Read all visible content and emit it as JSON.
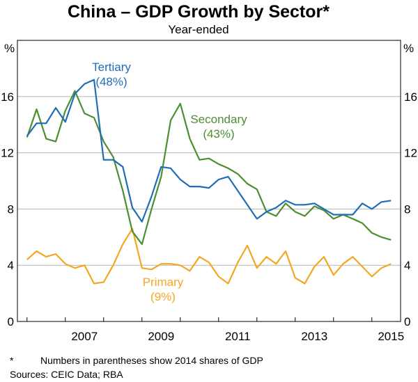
{
  "chart_data": {
    "type": "line",
    "title": "China – GDP Growth by Sector*",
    "subtitle": "Year-ended",
    "ylabel": "%",
    "ylim": [
      0,
      20
    ],
    "yticks": [
      0,
      4,
      8,
      12,
      16
    ],
    "xlim": [
      2005.75,
      2015.75
    ],
    "xticks": [
      2007,
      2009,
      2011,
      2013,
      2015
    ],
    "x_start": 2006.0,
    "x_step": 0.25,
    "series": [
      {
        "name": "Tertiary",
        "share": "(48%)",
        "color": "#1f6db5",
        "values": [
          13.2,
          14.1,
          14.1,
          15.2,
          14.2,
          16.2,
          16.9,
          17.2,
          11.5,
          11.5,
          11.0,
          8.1,
          7.1,
          8.9,
          11.0,
          10.9,
          10.1,
          9.6,
          9.6,
          9.5,
          10.1,
          10.3,
          9.3,
          8.3,
          7.3,
          7.8,
          8.1,
          8.6,
          8.3,
          8.3,
          8.4,
          8.0,
          7.6,
          7.6,
          7.6,
          8.4,
          8.0,
          8.5,
          8.6
        ]
      },
      {
        "name": "Secondary",
        "share": "(43%)",
        "color": "#4c8f30",
        "values": [
          13.1,
          15.1,
          13.0,
          12.8,
          15.0,
          16.4,
          14.8,
          14.5,
          12.8,
          11.7,
          9.3,
          6.4,
          5.5,
          8.0,
          10.3,
          14.3,
          15.5,
          13.0,
          11.5,
          11.6,
          11.2,
          10.9,
          10.5,
          9.8,
          9.4,
          7.8,
          7.5,
          8.4,
          7.8,
          7.5,
          8.2,
          7.9,
          7.3,
          7.6,
          7.3,
          7.0,
          6.3,
          6.0,
          5.8
        ]
      },
      {
        "name": "Primary",
        "share": "(9%)",
        "color": "#f5a623",
        "values": [
          4.4,
          5.0,
          4.6,
          4.8,
          4.1,
          3.8,
          4.0,
          2.7,
          2.8,
          4.0,
          5.5,
          6.6,
          3.8,
          3.7,
          4.1,
          4.1,
          4.0,
          3.6,
          4.6,
          4.2,
          3.2,
          2.7,
          4.2,
          5.4,
          3.8,
          4.6,
          4.1,
          5.0,
          3.1,
          2.7,
          3.9,
          4.6,
          3.3,
          4.1,
          4.6,
          3.9,
          3.2,
          3.8,
          4.1
        ]
      }
    ]
  },
  "footnotes": {
    "star_mark": "*",
    "note": "Numbers in parentheses show 2014 shares of GDP",
    "sources": "Sources:   CEIC Data; RBA"
  }
}
